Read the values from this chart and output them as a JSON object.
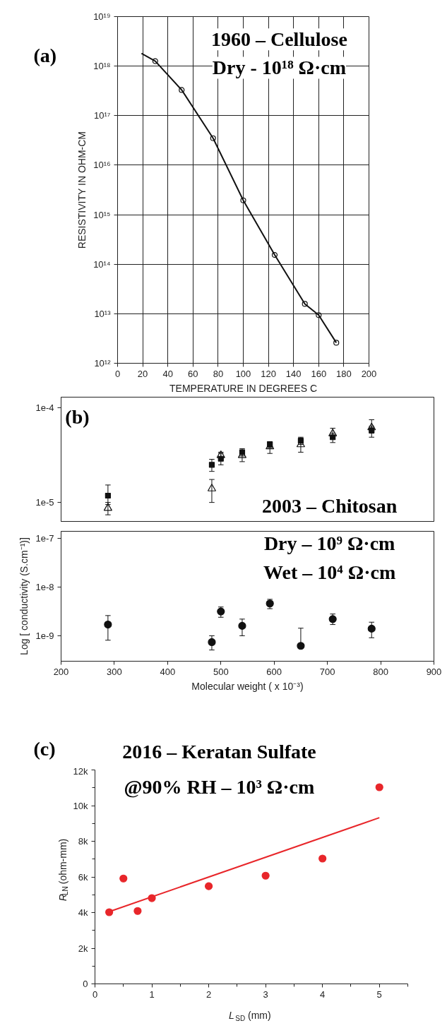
{
  "chart_data": [
    {
      "type": "scatter",
      "xlabel": "TEMPERATURE IN DEGREES C",
      "ylabel": "RESISTIVITY IN OHM-CM",
      "log": "y",
      "grid": true,
      "xlim": [
        0,
        200
      ],
      "ylim": [
        1000000000000.0,
        1e+19
      ],
      "xticks": [
        0,
        20,
        40,
        60,
        80,
        100,
        120,
        140,
        160,
        180,
        200
      ],
      "yticks": [
        {
          "value": 1000000000000.0,
          "label": "10¹²"
        },
        {
          "value": 10000000000000.0,
          "label": "10¹³"
        },
        {
          "value": 100000000000000.0,
          "label": "10¹⁴"
        },
        {
          "value": 1000000000000000.0,
          "label": "10¹⁵"
        },
        {
          "value": 1e+16,
          "label": "10¹⁶"
        },
        {
          "value": 1e+17,
          "label": "10¹⁷"
        },
        {
          "value": 1e+18,
          "label": "10¹⁸"
        },
        {
          "value": 1e+19,
          "label": "10¹⁹"
        }
      ],
      "annotations": [
        "(a)",
        "1960 – Cellulose",
        "Dry - 10¹⁸ Ω·cm"
      ],
      "series": [
        {
          "type": "line",
          "color": "#111111",
          "x": [
            19,
            30,
            51,
            76,
            100,
            125,
            149,
            160,
            174
          ],
          "values": [
            1.8e+18,
            1.26e+18,
            3.3e+17,
            3.5e+16,
            1950000000000000.0,
            154000000000000.0,
            15800000000000.0,
            9400000000000.0,
            2600000000000.0
          ]
        },
        {
          "type": "scatter",
          "marker": "circle",
          "color": "#111111",
          "x": [
            30,
            51,
            76,
            100,
            125,
            149,
            160,
            174
          ],
          "values": [
            1.26e+18,
            3.3e+17,
            3.5e+16,
            1950000000000000.0,
            154000000000000.0,
            15800000000000.0,
            9400000000000.0,
            2600000000000.0
          ]
        }
      ]
    },
    {
      "type": "scatter",
      "log": "y",
      "tick_labels": "y",
      "xlim": [
        200,
        900
      ],
      "ylim": [
        6.3e-06,
        0.00013
      ],
      "yticks": [
        {
          "value": 1e-05,
          "label": "1e-5"
        },
        {
          "value": 0.0001,
          "label": "1e-4"
        }
      ],
      "annotations": [
        "(b)",
        "2003 – Chitosan"
      ],
      "series": [
        {
          "marker": "square",
          "color": "#111111",
          "x": [
            288,
            483,
            500,
            540,
            592,
            650,
            710,
            783
          ],
          "values": [
            1.18e-05,
            2.5e-05,
            2.9e-05,
            3.4e-05,
            4.1e-05,
            4.5e-05,
            4.9e-05,
            5.8e-05
          ],
          "errors": [
            [
              9.5e-06,
              1.53e-05
            ],
            [
              2.13e-05,
              2.86e-05
            ],
            [
              2.5e-05,
              3.3e-05
            ],
            [
              3.1e-05,
              3.7e-05
            ],
            [
              3.8e-05,
              4.4e-05
            ],
            [
              4.1e-05,
              4.9e-05
            ],
            [
              4.3e-05,
              5.4e-05
            ],
            [
              4.9e-05,
              6.4e-05
            ]
          ]
        },
        {
          "marker": "triangle",
          "color": "#111111",
          "x": [
            288,
            483,
            500,
            540,
            592,
            650,
            710,
            783
          ],
          "values": [
            8.7e-06,
            1.4e-05,
            3.15e-05,
            3.15e-05,
            3.9e-05,
            4.1e-05,
            5.35e-05,
            6.2e-05
          ],
          "errors": [
            [
              7.4e-06,
              1e-05
            ],
            [
              1e-05,
              1.75e-05
            ],
            [
              2.9e-05,
              3.4e-05
            ],
            [
              2.7e-05,
              3.5e-05
            ],
            [
              3.3e-05,
              4.4e-05
            ],
            [
              3.4e-05,
              4.6e-05
            ],
            [
              4.8e-05,
              6.1e-05
            ],
            [
              5.4e-05,
              7.5e-05
            ]
          ]
        }
      ]
    },
    {
      "type": "scatter",
      "log": "y",
      "xlabel": "Molecular weight ( x 10⁻³)",
      "ylabel": "Log [ conductivity (S.cm⁻¹)]",
      "xlim": [
        200,
        900
      ],
      "ylim": [
        3e-10,
        1.4e-07
      ],
      "xticks": [
        200,
        300,
        400,
        500,
        600,
        700,
        800,
        900
      ],
      "yticks": [
        {
          "value": 1e-09,
          "label": "1e-9"
        },
        {
          "value": 1e-08,
          "label": "1e-8"
        },
        {
          "value": 1e-07,
          "label": "1e-7"
        }
      ],
      "annotations": [
        "Dry – 10⁹ Ω·cm",
        "Wet – 10⁴ Ω·cm"
      ],
      "series": [
        {
          "marker": "circle",
          "color": "#111111",
          "x": [
            288,
            483,
            500,
            540,
            592,
            650,
            710,
            783
          ],
          "values": [
            1.7e-09,
            7.4e-10,
            3.15e-09,
            1.6e-09,
            4.6e-09,
            6.2e-10,
            2.2e-09,
            1.4e-09
          ],
          "errors": [
            [
              8.1e-10,
              2.6e-09
            ],
            [
              5.1e-10,
              1e-09
            ],
            [
              2.4e-09,
              3.9e-09
            ],
            [
              1e-09,
              2.2e-09
            ],
            [
              3.6e-09,
              5.6e-09
            ],
            [
              6.2e-10,
              1.43e-09
            ],
            [
              1.7e-09,
              2.8e-09
            ],
            [
              9.1e-10,
              1.9e-09
            ]
          ]
        }
      ]
    },
    {
      "type": "scatter",
      "xlabel": "L$_{SD}$ (mm)",
      "ylabel": "R$_{LN}$ (ohm-mm)",
      "xlim": [
        0,
        5.5
      ],
      "ylim": [
        0,
        12000
      ],
      "xticks": [
        0,
        1,
        2,
        3,
        4,
        5
      ],
      "yticks": [
        0,
        {
          "value": 2000,
          "label": "2k"
        },
        {
          "value": 4000,
          "label": "4k"
        },
        {
          "value": 6000,
          "label": "6k"
        },
        {
          "value": 8000,
          "label": "8k"
        },
        {
          "value": 10000,
          "label": "10k"
        },
        {
          "value": 12000,
          "label": "12k"
        }
      ],
      "annotations": [
        "(c)",
        "2016 – Keratan Sulfate",
        "@90% RH – 10³ Ω·cm"
      ],
      "series": [
        {
          "type": "scatter",
          "marker": "circle",
          "color": "#e8262a",
          "x": [
            0.25,
            0.5,
            0.75,
            1,
            2,
            3,
            4,
            5
          ],
          "values": [
            4020,
            5910,
            4090,
            4810,
            5480,
            6070,
            7030,
            11030
          ]
        },
        {
          "type": "line",
          "color": "#e8262a",
          "x": [
            0.25,
            5
          ],
          "values": [
            4050,
            9320
          ]
        }
      ]
    }
  ]
}
